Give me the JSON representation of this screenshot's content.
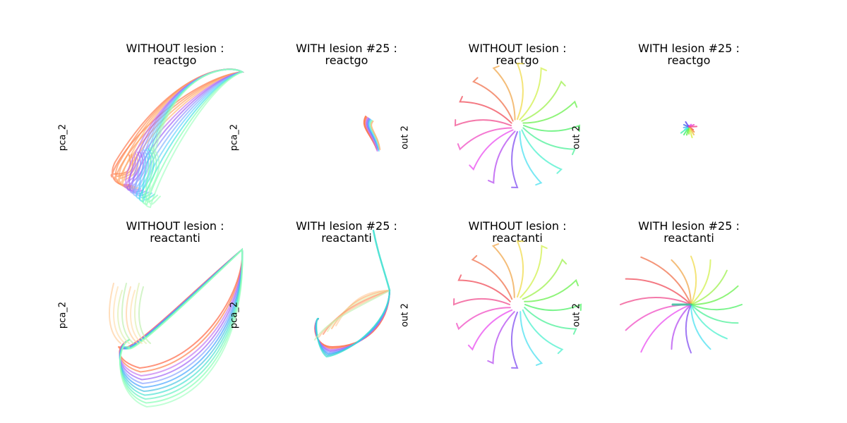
{
  "chart_data": [
    {
      "type": "line",
      "title": "WITHOUT lesion :",
      "subtitle": "reactgo",
      "ylabel": "pca_2",
      "grid": false,
      "axes_visible": false,
      "series": [
        {
          "color": "#ff7043"
        },
        {
          "color": "#ffb070"
        },
        {
          "color": "#9b5cf6"
        },
        {
          "color": "#7fb0ff"
        },
        {
          "color": "#5fd0ff"
        },
        {
          "color": "#80ffb0"
        },
        {
          "color": "#40e0d0"
        }
      ]
    },
    {
      "type": "line",
      "title": "WITH lesion #25 :",
      "subtitle": "reactgo",
      "ylabel": "pca_2",
      "grid": false,
      "axes_visible": false,
      "series": [
        {
          "color": "#ff5a36"
        },
        {
          "color": "#9b5cf6"
        },
        {
          "color": "#3aa0ff"
        },
        {
          "color": "#80ffb0"
        }
      ]
    },
    {
      "type": "line",
      "title": "WITHOUT lesion :",
      "subtitle": "reactgo",
      "ylabel": "out 2",
      "grid": false,
      "axes_visible": false,
      "series": [
        {
          "name": "radial targets",
          "count": 16
        }
      ]
    },
    {
      "type": "line",
      "title": "WITH lesion #25 :",
      "subtitle": "reactgo",
      "ylabel": "out 2",
      "grid": false,
      "axes_visible": false,
      "series": [
        {
          "name": "radial targets",
          "count": 16
        }
      ]
    },
    {
      "type": "line",
      "title": "WITHOUT lesion :",
      "subtitle": "reactanti",
      "ylabel": "pca_2",
      "grid": false,
      "axes_visible": false,
      "series": [
        {
          "color": "#ff5a36"
        },
        {
          "color": "#9b5cf6"
        },
        {
          "color": "#3aa0ff"
        },
        {
          "color": "#40e0d0"
        },
        {
          "color": "#ffd0a0"
        },
        {
          "color": "#c0f0b0"
        }
      ]
    },
    {
      "type": "line",
      "title": "WITH lesion #25 :",
      "subtitle": "reactanti",
      "ylabel": "pca_2",
      "grid": false,
      "axes_visible": false,
      "series": [
        {
          "color": "#ff5a36"
        },
        {
          "color": "#9b5cf6"
        },
        {
          "color": "#3aa0ff"
        },
        {
          "color": "#40e0d0"
        },
        {
          "color": "#ffd0a0"
        }
      ]
    },
    {
      "type": "line",
      "title": "WITHOUT lesion :",
      "subtitle": "reactanti",
      "ylabel": "out 2",
      "grid": false,
      "axes_visible": false,
      "series": [
        {
          "name": "radial targets",
          "count": 16
        }
      ]
    },
    {
      "type": "line",
      "title": "WITH lesion #25 :",
      "subtitle": "reactanti",
      "ylabel": "out 2",
      "grid": false,
      "axes_visible": false,
      "series": [
        {
          "name": "radial targets",
          "count": 16
        }
      ]
    }
  ]
}
